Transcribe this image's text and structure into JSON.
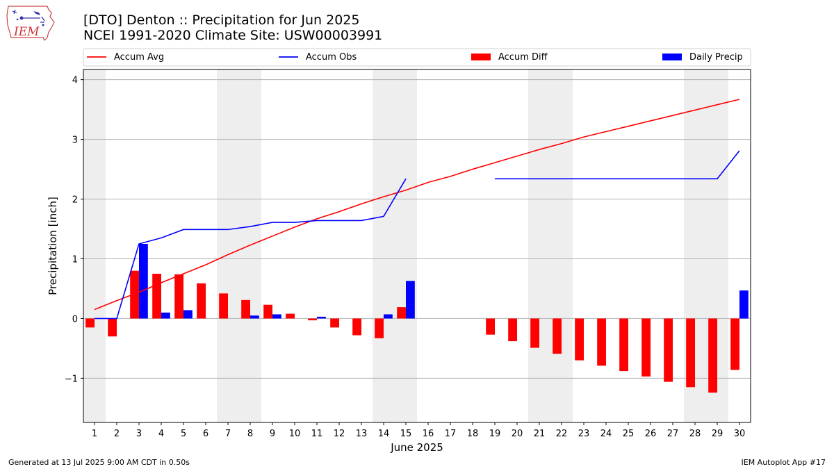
{
  "header": {
    "title_line1": "[DTO] Denton :: Precipitation for Jun 2025",
    "title_line2": "NCEI 1991-2020 Climate Site: USW00003991"
  },
  "logo": {
    "text": "IEM"
  },
  "footer": {
    "left": "Generated at 13 Jul 2025 9:00 AM CDT in 0.50s",
    "right": "IEM Autoplot App #17"
  },
  "chart_data": {
    "type": "bar",
    "xlabel": "June 2025",
    "ylabel": "Precipitation [inch]",
    "xlim": [
      0.5,
      30.5
    ],
    "ylim": [
      -1.74,
      4.17
    ],
    "yticks": [
      -1,
      0,
      1,
      2,
      3,
      4
    ],
    "ytick_labels": [
      "−1",
      "0",
      "1",
      "2",
      "3",
      "4"
    ],
    "grid": "horizontal",
    "legend_placement": "top",
    "days": [
      1,
      2,
      3,
      4,
      5,
      6,
      7,
      8,
      9,
      10,
      11,
      12,
      13,
      14,
      15,
      16,
      17,
      18,
      19,
      20,
      21,
      22,
      23,
      24,
      25,
      26,
      27,
      28,
      29,
      30
    ],
    "weekend_shading": [
      [
        0.5,
        1.5
      ],
      [
        6.5,
        8.5
      ],
      [
        13.5,
        15.5
      ],
      [
        20.5,
        22.5
      ],
      [
        27.5,
        29.5
      ]
    ],
    "colors": {
      "accum_avg": "#ff0000",
      "accum_obs": "#0000ff",
      "accum_diff": "#ff0000",
      "daily_precip": "#0000ff",
      "shade": "#eeeeee",
      "grid": "#b0b0b0"
    },
    "series": [
      {
        "name": "Accum Avg",
        "kind": "line",
        "values": [
          0.15,
          0.3,
          0.44,
          0.6,
          0.75,
          0.9,
          1.07,
          1.23,
          1.38,
          1.53,
          1.67,
          1.79,
          1.92,
          2.04,
          2.15,
          2.28,
          2.38,
          2.5,
          2.61,
          2.72,
          2.83,
          2.93,
          3.04,
          3.13,
          3.22,
          3.31,
          3.4,
          3.49,
          3.58,
          3.67
        ]
      },
      {
        "name": "Accum Obs",
        "kind": "line",
        "values": [
          0.0,
          0.0,
          1.25,
          1.35,
          1.49,
          1.49,
          1.49,
          1.54,
          1.61,
          1.61,
          1.64,
          1.64,
          1.64,
          1.71,
          2.34,
          null,
          null,
          null,
          2.34,
          2.34,
          2.34,
          2.34,
          2.34,
          2.34,
          2.34,
          2.34,
          2.34,
          2.34,
          2.34,
          2.81
        ]
      },
      {
        "name": "Accum Diff",
        "kind": "bar",
        "values": [
          -0.15,
          -0.3,
          0.8,
          0.75,
          0.74,
          0.59,
          0.42,
          0.31,
          0.23,
          0.08,
          -0.03,
          -0.15,
          -0.28,
          -0.33,
          0.19,
          null,
          null,
          null,
          -0.27,
          -0.38,
          -0.49,
          -0.59,
          -0.7,
          -0.79,
          -0.88,
          -0.97,
          -1.06,
          -1.15,
          -1.24,
          -0.86
        ]
      },
      {
        "name": "Daily Precip",
        "kind": "bar",
        "values": [
          0.0,
          0.0,
          1.25,
          0.1,
          0.14,
          0.0,
          0.0,
          0.05,
          0.07,
          0.0,
          0.03,
          0.0,
          0.0,
          0.07,
          0.63,
          null,
          null,
          null,
          0.0,
          0.0,
          0.0,
          0.0,
          0.0,
          0.0,
          0.0,
          0.0,
          0.0,
          0.0,
          0.0,
          0.47
        ]
      }
    ]
  }
}
